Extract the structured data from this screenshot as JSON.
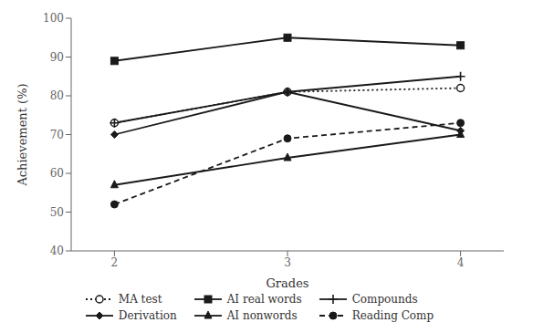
{
  "chart_data": {
    "type": "line",
    "xlabel": "Grades",
    "ylabel": "Achievement (%)",
    "x": [
      2,
      3,
      4
    ],
    "series": [
      {
        "name": "MA test",
        "color": "#1a1a1a",
        "values": [
          73,
          81,
          82
        ],
        "marker": "hollow_circle",
        "line_style": "dotted"
      },
      {
        "name": "AI real words",
        "color": "#1a1a1a",
        "values": [
          89,
          95,
          93
        ],
        "marker": "square",
        "line_style": "solid"
      },
      {
        "name": "Compounds",
        "color": "#1a1a1a",
        "values": [
          73,
          81,
          85
        ],
        "marker": "plus",
        "line_style": "solid"
      },
      {
        "name": "Derivation",
        "color": "#1a1a1a",
        "values": [
          70,
          81,
          71
        ],
        "marker": "diamond",
        "line_style": "solid"
      },
      {
        "name": "AI nonwords",
        "color": "#1a1a1a",
        "values": [
          57,
          64,
          70
        ],
        "marker": "triangle",
        "line_style": "solid"
      },
      {
        "name": "Reading Comp",
        "color": "#1a1a1a",
        "values": [
          52,
          69,
          73
        ],
        "marker": "circle",
        "line_style": "dashed"
      }
    ],
    "xlim": [
      1.75,
      4.25
    ],
    "xticks": [
      2,
      3,
      4
    ],
    "ylim": [
      40,
      100
    ],
    "yticks": [
      40,
      50,
      60,
      70,
      80,
      90,
      100
    ],
    "grid": false,
    "legend": "bottom"
  }
}
